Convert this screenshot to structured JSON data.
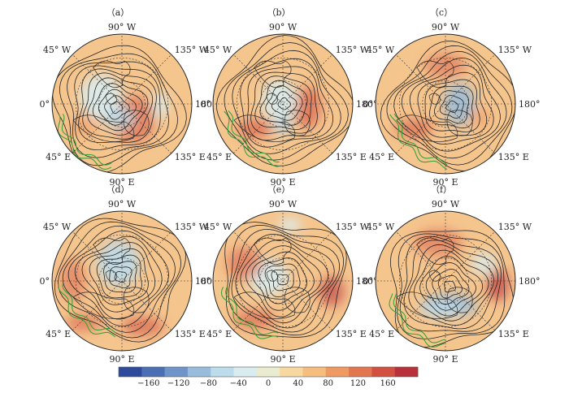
{
  "panels": [
    {
      "label": "（a）"
    },
    {
      "label": "（b）"
    },
    {
      "label": "（c）"
    },
    {
      "label": "（d）"
    },
    {
      "label": "（e）"
    },
    {
      "label": "（f）"
    }
  ],
  "longitude_labels": {
    "top": "90° W",
    "upper_right": "135° W",
    "right": "180°",
    "lower_right": "135° E",
    "bottom": "90° E",
    "lower_left": "45° E",
    "left": "0°",
    "upper_left": "45° W"
  },
  "colorbar": {
    "colors": [
      "#2e4a9a",
      "#4a6fb3",
      "#6f95c8",
      "#98bcdc",
      "#bcdcec",
      "#d9edf0",
      "#eaecd0",
      "#f7d8a0",
      "#f5bd7e",
      "#ef9a62",
      "#e27650",
      "#d2503f",
      "#b8303a"
    ],
    "tick_labels": [
      "−160",
      "−120",
      "−80",
      "−40",
      "0",
      "40",
      "80",
      "120",
      "160"
    ],
    "tick_values": [
      -160,
      -120,
      -80,
      -40,
      0,
      40,
      80,
      120,
      160
    ],
    "range": [
      -200,
      200
    ]
  },
  "colors": {
    "background": "#f5c58e",
    "outline": "#222222",
    "grid": "#333333",
    "contour": "#222222",
    "coast": "#2a2a2a",
    "green_contour": "#3aa33a"
  }
}
